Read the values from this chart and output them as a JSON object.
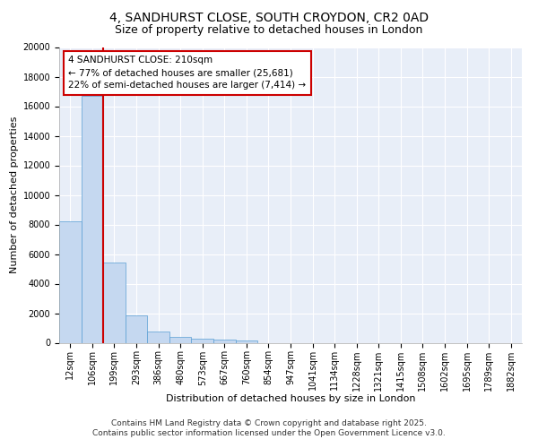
{
  "title_line1": "4, SANDHURST CLOSE, SOUTH CROYDON, CR2 0AD",
  "title_line2": "Size of property relative to detached houses in London",
  "xlabel": "Distribution of detached houses by size in London",
  "ylabel": "Number of detached properties",
  "categories": [
    "12sqm",
    "106sqm",
    "199sqm",
    "293sqm",
    "386sqm",
    "480sqm",
    "573sqm",
    "667sqm",
    "760sqm",
    "854sqm",
    "947sqm",
    "1041sqm",
    "1134sqm",
    "1228sqm",
    "1321sqm",
    "1415sqm",
    "1508sqm",
    "1602sqm",
    "1695sqm",
    "1789sqm",
    "1882sqm"
  ],
  "values": [
    8200,
    16700,
    5400,
    1850,
    750,
    380,
    280,
    210,
    160,
    0,
    0,
    0,
    0,
    0,
    0,
    0,
    0,
    0,
    0,
    0,
    0
  ],
  "bar_color": "#c5d8f0",
  "bar_edge_color": "#5a9fd4",
  "vline_color": "#cc0000",
  "vline_pos": 1.5,
  "annotation_text": "4 SANDHURST CLOSE: 210sqm\n← 77% of detached houses are smaller (25,681)\n22% of semi-detached houses are larger (7,414) →",
  "annotation_box_color": "#cc0000",
  "ylim": [
    0,
    20000
  ],
  "yticks": [
    0,
    2000,
    4000,
    6000,
    8000,
    10000,
    12000,
    14000,
    16000,
    18000,
    20000
  ],
  "background_color": "#e8eef8",
  "grid_color": "#ffffff",
  "fig_background": "#ffffff",
  "footer_line1": "Contains HM Land Registry data © Crown copyright and database right 2025.",
  "footer_line2": "Contains public sector information licensed under the Open Government Licence v3.0.",
  "title_fontsize": 10,
  "subtitle_fontsize": 9,
  "axis_label_fontsize": 8,
  "tick_fontsize": 7,
  "annotation_fontsize": 7.5,
  "footer_fontsize": 6.5
}
